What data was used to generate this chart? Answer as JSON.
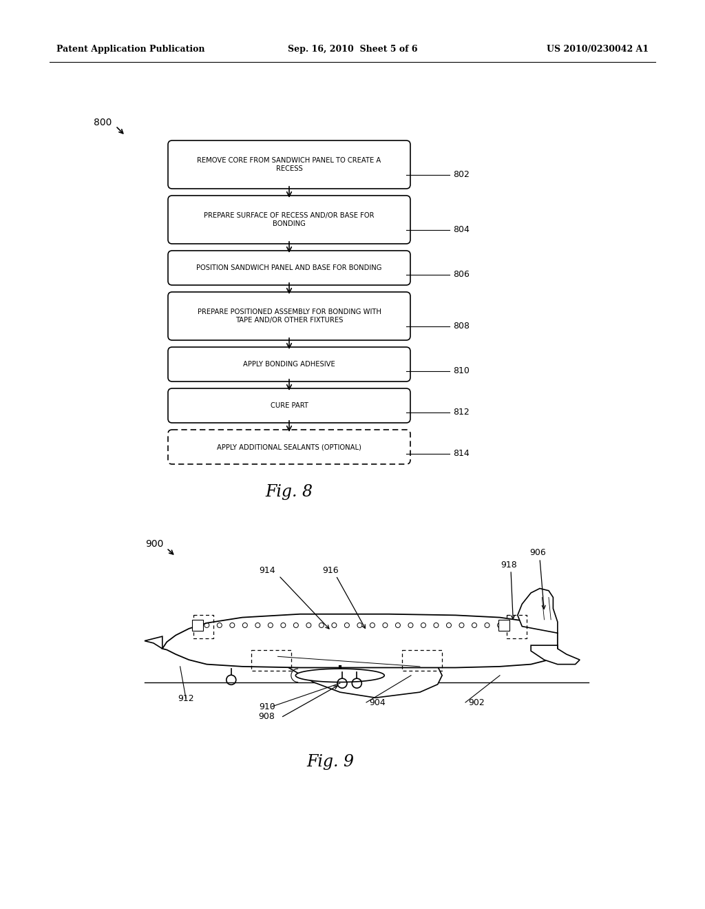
{
  "background_color": "#ffffff",
  "header_left": "Patent Application Publication",
  "header_center": "Sep. 16, 2010  Sheet 5 of 6",
  "header_right": "US 2010/0230042 A1",
  "fig8_label": "Fig. 8",
  "fig9_label": "Fig. 9",
  "flowchart_steps": [
    {
      "text": "REMOVE CORE FROM SANDWICH PANEL TO CREATE A\nRECESS",
      "label": "802",
      "dashed": false,
      "two_line": true
    },
    {
      "text": "PREPARE SURFACE OF RECESS AND/OR BASE FOR\nBONDING",
      "label": "804",
      "dashed": false,
      "two_line": true
    },
    {
      "text": "POSITION SANDWICH PANEL AND BASE FOR BONDING",
      "label": "806",
      "dashed": false,
      "two_line": false
    },
    {
      "text": "PREPARE POSITIONED ASSEMBLY FOR BONDING WITH\nTAPE AND/OR OTHER FIXTURES",
      "label": "808",
      "dashed": false,
      "two_line": true
    },
    {
      "text": "APPLY BONDING ADHESIVE",
      "label": "810",
      "dashed": false,
      "two_line": false
    },
    {
      "text": "CURE PART",
      "label": "812",
      "dashed": false,
      "two_line": false
    },
    {
      "text": "APPLY ADDITIONAL SEALANTS (OPTIONAL)",
      "label": "814",
      "dashed": true,
      "two_line": false
    }
  ]
}
